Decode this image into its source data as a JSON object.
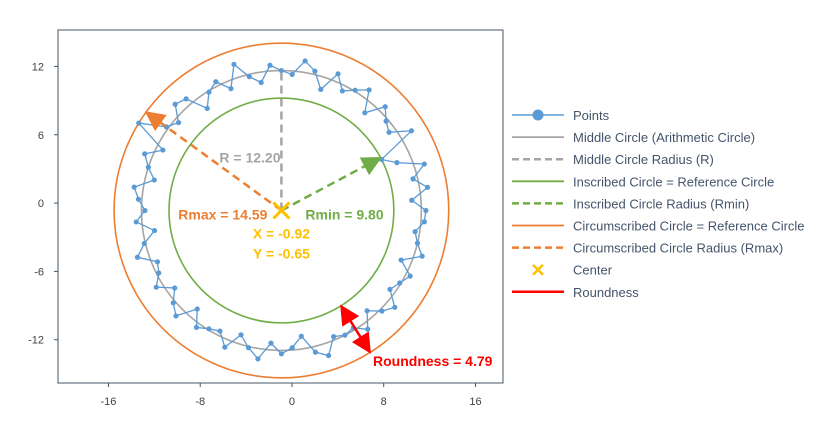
{
  "chart_data": {
    "type": "scatter",
    "title": "",
    "xlabel": "",
    "ylabel": "",
    "xlim": [
      -20.4,
      18.4
    ],
    "ylim": [
      -15.8,
      15.2
    ],
    "grid": false,
    "xticks": [
      -16,
      -8,
      0,
      8,
      16
    ],
    "yticks": [
      12,
      6,
      0,
      -6,
      -12
    ],
    "center": {
      "x": -0.92,
      "y": -0.65
    },
    "R": 12.2,
    "Rmin": 9.8,
    "Rmax": 14.59,
    "roundness": 4.79,
    "rmin_angle_deg": 28,
    "rmax_angle_deg": 144,
    "roundness_angle_deg": -58,
    "points_angle_step_deg": 4.5,
    "points_radius": [
      12.6,
      11.4,
      12.9,
      11.8,
      13.1,
      10.9,
      9.8,
      13.3,
      11.6,
      12.0,
      12.8,
      11.2,
      13.0,
      12.3,
      11.7,
      12.9,
      11.1,
      12.5,
      13.2,
      11.9,
      12.2,
      12.7,
      11.3,
      12.0,
      13.4,
      11.5,
      12.6,
      12.1,
      11.0,
      12.8,
      13.1,
      11.8,
      12.4,
      14.59,
      11.6,
      12.9,
      12.2,
      11.4,
      13.0,
      12.5,
      11.9,
      12.7,
      11.2,
      12.3,
      13.2,
      11.7,
      12.0,
      12.8,
      11.5,
      12.4,
      13.0,
      11.3,
      12.6,
      12.1,
      11.8,
      12.9,
      11.4,
      12.3,
      13.1,
      11.6,
      12.5,
      12.0,
      11.1,
      12.7,
      13.3,
      11.9,
      12.2,
      12.0,
      12.8,
      11.5,
      12.4,
      13.0,
      11.7,
      12.1,
      12.6,
      11.3,
      12.9,
      12.2,
      11.8,
      12.5
    ],
    "annotations": {
      "r_label": "R = 12.20",
      "rmax_label": "Rmax = 14.59",
      "rmin_label": "Rmin = 9.80",
      "x_label": "X = -0.92",
      "y_label": "Y = -0.65",
      "roundness_label": "Roundness = 4.79"
    },
    "legend_position": "right",
    "legend": [
      {
        "label": "Points",
        "kind": "points",
        "color": "#5b9bd5"
      },
      {
        "label": "Middle Circle (Arithmetic Circle)",
        "kind": "line",
        "color": "#a5a5a5"
      },
      {
        "label": "Middle Circle Radius (R)",
        "kind": "dash",
        "color": "#a5a5a5"
      },
      {
        "label": "Inscribed Circle = Reference Circle",
        "kind": "line",
        "color": "#70ad47"
      },
      {
        "label": "Inscribed Circle Radius (Rmin)",
        "kind": "dash",
        "color": "#70ad47"
      },
      {
        "label": "Circumscribed Circle = Reference Circle",
        "kind": "line",
        "color": "#ed7d31"
      },
      {
        "label": "Circumscribed Circle Radius (Rmax)",
        "kind": "dash",
        "color": "#ed7d31"
      },
      {
        "label": "Center",
        "kind": "x",
        "color": "#ffc000"
      },
      {
        "label": "Roundness",
        "kind": "line",
        "color": "#ff0000"
      }
    ],
    "colors": {
      "points": "#5b9bd5",
      "middle": "#a5a5a5",
      "inscribed": "#70ad47",
      "circumscribed": "#ed7d31",
      "center": "#ffc000",
      "roundness": "#ff0000",
      "axis": "#44546a",
      "tick_text": "#404040"
    }
  }
}
